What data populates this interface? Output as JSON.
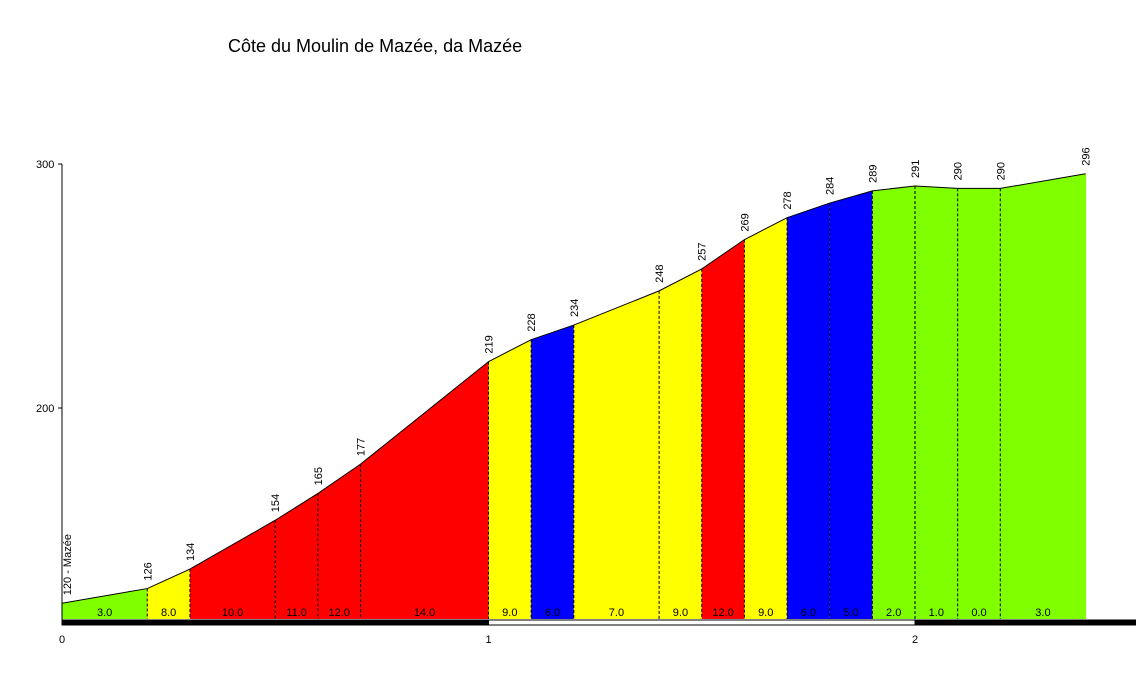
{
  "chart_data": {
    "type": "area",
    "title": "Côte du Moulin de Mazée, da Mazée",
    "xlabel": "",
    "ylabel": "",
    "xlim": [
      0,
      2.52
    ],
    "ylim": [
      115,
      303
    ],
    "x_ticks": [
      "0",
      "1",
      "2"
    ],
    "y_ticks": [
      "200",
      "300"
    ],
    "start_label": "120 - Mazée",
    "points": [
      {
        "x": 0.0,
        "y": 120,
        "label": ""
      },
      {
        "x": 0.2,
        "y": 126,
        "label": "126"
      },
      {
        "x": 0.3,
        "y": 134,
        "label": "134"
      },
      {
        "x": 0.5,
        "y": 154,
        "label": "154"
      },
      {
        "x": 0.6,
        "y": 165,
        "label": "165"
      },
      {
        "x": 0.7,
        "y": 177,
        "label": "177"
      },
      {
        "x": 1.0,
        "y": 219,
        "label": "219"
      },
      {
        "x": 1.1,
        "y": 228,
        "label": "228"
      },
      {
        "x": 1.2,
        "y": 234,
        "label": "234"
      },
      {
        "x": 1.4,
        "y": 248,
        "label": "248"
      },
      {
        "x": 1.5,
        "y": 257,
        "label": "257"
      },
      {
        "x": 1.6,
        "y": 269,
        "label": "269"
      },
      {
        "x": 1.7,
        "y": 278,
        "label": "278"
      },
      {
        "x": 1.8,
        "y": 284,
        "label": "284"
      },
      {
        "x": 1.9,
        "y": 289,
        "label": "289"
      },
      {
        "x": 2.0,
        "y": 291,
        "label": "291"
      },
      {
        "x": 2.1,
        "y": 290,
        "label": "290"
      },
      {
        "x": 2.2,
        "y": 290,
        "label": "290"
      },
      {
        "x": 2.4,
        "y": 296,
        "label": "296"
      }
    ],
    "segments": [
      {
        "start": 0.0,
        "end": 0.2,
        "gradient": "3.0",
        "color": "#80ff00"
      },
      {
        "start": 0.2,
        "end": 0.3,
        "gradient": "8.0",
        "color": "#ffff00"
      },
      {
        "start": 0.3,
        "end": 0.5,
        "gradient": "10.0",
        "color": "#ff0000"
      },
      {
        "start": 0.5,
        "end": 0.6,
        "gradient": "11.0",
        "color": "#ff0000"
      },
      {
        "start": 0.6,
        "end": 0.7,
        "gradient": "12.0",
        "color": "#ff0000"
      },
      {
        "start": 0.7,
        "end": 1.0,
        "gradient": "14.0",
        "color": "#ff0000"
      },
      {
        "start": 1.0,
        "end": 1.1,
        "gradient": "9.0",
        "color": "#ffff00"
      },
      {
        "start": 1.1,
        "end": 1.2,
        "gradient": "6.0",
        "color": "#0000ff"
      },
      {
        "start": 1.2,
        "end": 1.4,
        "gradient": "7.0",
        "color": "#ffff00"
      },
      {
        "start": 1.4,
        "end": 1.5,
        "gradient": "9.0",
        "color": "#ffff00"
      },
      {
        "start": 1.5,
        "end": 1.6,
        "gradient": "12.0",
        "color": "#ff0000"
      },
      {
        "start": 1.6,
        "end": 1.7,
        "gradient": "9.0",
        "color": "#ffff00"
      },
      {
        "start": 1.7,
        "end": 1.8,
        "gradient": "6.0",
        "color": "#0000ff"
      },
      {
        "start": 1.8,
        "end": 1.9,
        "gradient": "5.0",
        "color": "#0000ff"
      },
      {
        "start": 1.9,
        "end": 2.0,
        "gradient": "2.0",
        "color": "#80ff00"
      },
      {
        "start": 2.0,
        "end": 2.1,
        "gradient": "1.0",
        "color": "#80ff00"
      },
      {
        "start": 2.1,
        "end": 2.2,
        "gradient": "0.0",
        "color": "#80ff00"
      },
      {
        "start": 2.2,
        "end": 2.4,
        "gradient": "3.0",
        "color": "#80ff00"
      }
    ]
  }
}
